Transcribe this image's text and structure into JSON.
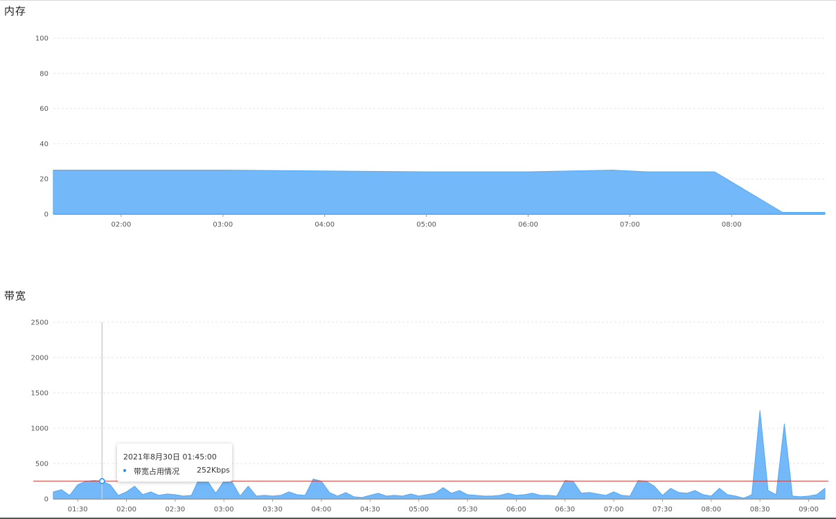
{
  "sections": {
    "memory_title": "内存",
    "bandwidth_title": "带宽"
  },
  "colors": {
    "area_fill": "#73b9fa",
    "area_stroke": "#4ea6f6",
    "grid": "#e6e6e6",
    "threshold": "#d9352a",
    "crosshair": "#cccccc",
    "tooltip_dot": "#1f8ff5"
  },
  "tooltip": {
    "title": "2021年8月30日 01:45:00",
    "series_name": "带宽占用情况",
    "value": "252Kbps"
  },
  "chart_data": [
    {
      "type": "area",
      "title": "内存",
      "ylim": [
        0,
        100
      ],
      "yticks": [
        "0",
        "20",
        "40",
        "60",
        "80",
        "100"
      ],
      "xlim": [
        "01:20",
        "08:55"
      ],
      "xticks": [
        "02:00",
        "03:00",
        "04:00",
        "05:00",
        "06:00",
        "07:00",
        "08:00"
      ],
      "grid": true,
      "series": [
        {
          "x": [
            "01:20",
            "03:00",
            "04:00",
            "05:00",
            "06:00",
            "06:50",
            "07:10",
            "07:50",
            "08:30",
            "08:55"
          ],
          "y": [
            25,
            25,
            24.5,
            24,
            24,
            25,
            24,
            24,
            1,
            1
          ]
        }
      ]
    },
    {
      "type": "area",
      "title": "带宽",
      "ylim": [
        0,
        2500
      ],
      "yticks": [
        "0",
        "500",
        "1000",
        "1500",
        "2000",
        "2500"
      ],
      "xlim": [
        "01:15",
        "09:10"
      ],
      "xticks": [
        "01:30",
        "02:00",
        "02:30",
        "03:00",
        "03:30",
        "04:00",
        "04:30",
        "05:00",
        "05:30",
        "06:00",
        "06:30",
        "07:00",
        "07:30",
        "08:00",
        "08:30",
        "09:00"
      ],
      "grid": true,
      "threshold": 252,
      "crosshair_x": "01:45",
      "series": [
        {
          "name": "带宽占用情况",
          "x": [
            "01:15",
            "01:20",
            "01:25",
            "01:30",
            "01:35",
            "01:40",
            "01:45",
            "01:50",
            "01:55",
            "02:00",
            "02:05",
            "02:10",
            "02:15",
            "02:20",
            "02:25",
            "02:30",
            "02:35",
            "02:40",
            "02:45",
            "02:50",
            "02:55",
            "03:00",
            "03:05",
            "03:10",
            "03:15",
            "03:20",
            "03:25",
            "03:30",
            "03:35",
            "03:40",
            "03:45",
            "03:50",
            "03:55",
            "04:00",
            "04:05",
            "04:10",
            "04:15",
            "04:20",
            "04:25",
            "04:30",
            "04:35",
            "04:40",
            "04:45",
            "04:50",
            "04:55",
            "05:00",
            "05:05",
            "05:10",
            "05:15",
            "05:20",
            "05:25",
            "05:30",
            "05:35",
            "05:40",
            "05:45",
            "05:50",
            "05:55",
            "06:00",
            "06:05",
            "06:10",
            "06:15",
            "06:20",
            "06:25",
            "06:30",
            "06:35",
            "06:40",
            "06:45",
            "06:50",
            "06:55",
            "07:00",
            "07:05",
            "07:10",
            "07:15",
            "07:20",
            "07:25",
            "07:30",
            "07:35",
            "07:40",
            "07:45",
            "07:50",
            "07:55",
            "08:00",
            "08:05",
            "08:10",
            "08:15",
            "08:20",
            "08:25",
            "08:30",
            "08:35",
            "08:40",
            "08:45",
            "08:50",
            "08:55",
            "09:00",
            "09:05",
            "09:10"
          ],
          "y": [
            100,
            130,
            50,
            200,
            250,
            260,
            252,
            200,
            50,
            100,
            180,
            60,
            100,
            50,
            70,
            60,
            40,
            50,
            300,
            250,
            80,
            250,
            240,
            40,
            180,
            40,
            50,
            40,
            50,
            100,
            60,
            50,
            280,
            250,
            90,
            40,
            90,
            30,
            20,
            50,
            80,
            40,
            50,
            40,
            70,
            40,
            60,
            80,
            160,
            80,
            120,
            60,
            50,
            40,
            40,
            50,
            80,
            50,
            60,
            80,
            50,
            50,
            40,
            260,
            250,
            80,
            90,
            70,
            50,
            100,
            50,
            40,
            260,
            250,
            180,
            50,
            150,
            90,
            80,
            120,
            60,
            40,
            150,
            60,
            40,
            10,
            60,
            1250,
            120,
            60,
            1060,
            40,
            30,
            40,
            60,
            150
          ]
        }
      ]
    }
  ]
}
